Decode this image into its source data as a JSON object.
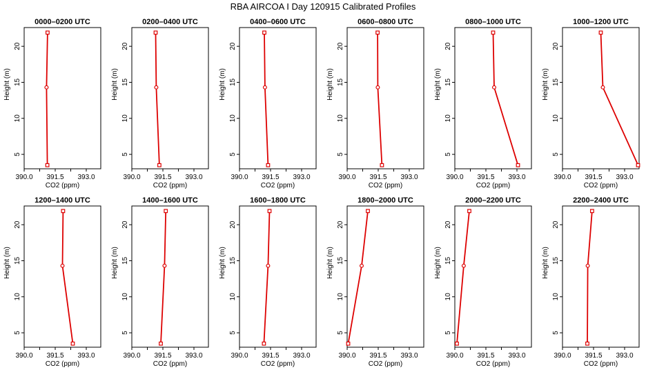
{
  "figure": {
    "title": "RBA AIRCOA I  Day 120915  Calibrated Profiles"
  },
  "chart_data": {
    "type": "line",
    "xlabel": "CO2 (ppm)",
    "ylabel": "Height (m)",
    "xlim": [
      390.0,
      393.7
    ],
    "ylim": [
      3.0,
      22.6
    ],
    "xticks": [
      390.0,
      391.5,
      393.0
    ],
    "xtick_labels": [
      "390.0",
      "391.5",
      "393.0"
    ],
    "yticks": [
      5,
      10,
      15,
      20
    ],
    "ytick_labels": [
      "5",
      "10",
      "15",
      "20"
    ],
    "line_color": "#dd0000",
    "marker_color": "#dd0000",
    "heights": [
      3.5,
      14.3,
      21.9
    ],
    "panels": [
      {
        "title": "0000–0200 UTC",
        "co2": [
          391.12,
          391.08,
          391.13
        ]
      },
      {
        "title": "0200–0400 UTC",
        "co2": [
          391.33,
          391.18,
          391.15
        ]
      },
      {
        "title": "0400–0600 UTC",
        "co2": [
          391.38,
          391.23,
          391.2
        ]
      },
      {
        "title": "0600–0800 UTC",
        "co2": [
          391.68,
          391.48,
          391.47
        ]
      },
      {
        "title": "0800–1000 UTC",
        "co2": [
          393.05,
          391.9,
          391.85
        ]
      },
      {
        "title": "1000–1200 UTC",
        "co2": [
          393.65,
          391.95,
          391.85
        ]
      },
      {
        "title": "1200–1400 UTC",
        "co2": [
          392.35,
          391.85,
          391.88
        ]
      },
      {
        "title": "1400–1600 UTC",
        "co2": [
          391.4,
          391.58,
          391.64
        ]
      },
      {
        "title": "1600–1800 UTC",
        "co2": [
          391.18,
          391.38,
          391.45
        ]
      },
      {
        "title": "1800–2000 UTC",
        "co2": [
          390.05,
          390.7,
          391.0
        ]
      },
      {
        "title": "2000–2200 UTC",
        "co2": [
          390.1,
          390.43,
          390.7
        ]
      },
      {
        "title": "2200–2400 UTC",
        "co2": [
          391.2,
          391.22,
          391.43
        ]
      }
    ]
  }
}
